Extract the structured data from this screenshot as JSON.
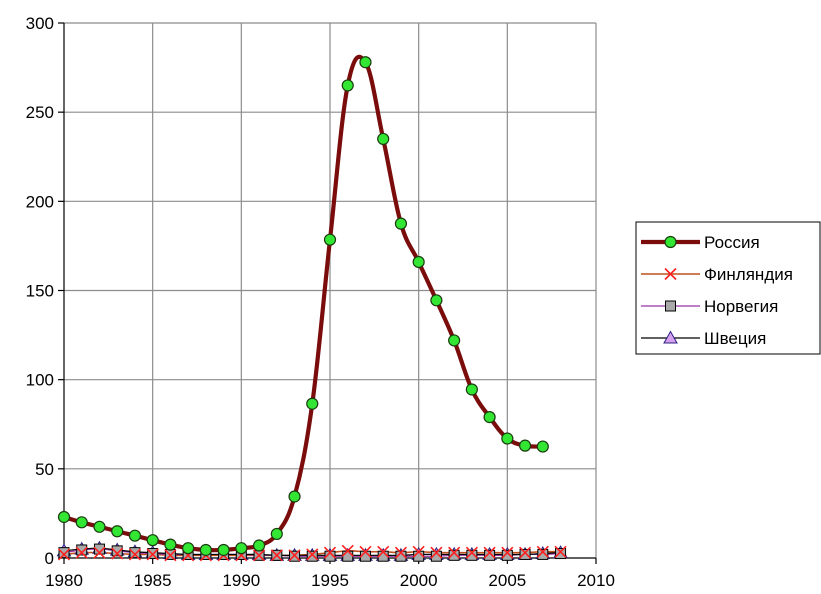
{
  "chart_data": {
    "type": "line",
    "title": "",
    "xlabel": "",
    "ylabel": "",
    "xlim": [
      1980,
      2010
    ],
    "ylim": [
      0,
      300
    ],
    "xticks": [
      1980,
      1985,
      1990,
      1995,
      2000,
      2005,
      2010
    ],
    "yticks": [
      0,
      50,
      100,
      150,
      200,
      250,
      300
    ],
    "grid": true,
    "legend_position": "right",
    "series": [
      {
        "name": "Россия",
        "color": "#7b0c0c",
        "marker": "circle",
        "marker_fill": "#33e633",
        "x": [
          1980,
          1981,
          1982,
          1983,
          1984,
          1985,
          1986,
          1987,
          1988,
          1989,
          1990,
          1991,
          1992,
          1993,
          1994,
          1995,
          1996,
          1997,
          1998,
          1999,
          2000,
          2001,
          2002,
          2003,
          2004,
          2005,
          2006,
          2007
        ],
        "y": [
          23,
          20,
          17.5,
          15,
          12.5,
          10,
          7.5,
          5.5,
          4.5,
          4.5,
          5.5,
          7,
          13.5,
          34.5,
          86.5,
          178.5,
          265,
          278,
          235,
          187.5,
          166,
          144.5,
          122,
          94.5,
          79,
          67,
          63,
          62.5
        ]
      },
      {
        "name": "Финляндия",
        "color": "#c0501f",
        "marker": "x",
        "marker_fill": "#ff2020",
        "x": [
          1980,
          1981,
          1982,
          1983,
          1984,
          1985,
          1986,
          1987,
          1988,
          1989,
          1990,
          1991,
          1992,
          1993,
          1994,
          1995,
          1996,
          1997,
          1998,
          1999,
          2000,
          2001,
          2002,
          2003,
          2004,
          2005,
          2006,
          2007,
          2008
        ],
        "y": [
          2,
          3,
          3,
          2.5,
          2,
          2,
          1.5,
          1.5,
          1.5,
          1.5,
          1.5,
          1.5,
          1.5,
          1.5,
          2,
          3,
          4,
          3.5,
          3.5,
          3,
          3.5,
          3,
          3,
          3,
          3,
          3,
          3,
          3.5,
          3.5
        ]
      },
      {
        "name": "Норвегия",
        "color": "#9932a6",
        "marker": "square",
        "marker_fill": "#aaaaaa",
        "x": [
          1980,
          1981,
          1982,
          1983,
          1984,
          1985,
          1986,
          1987,
          1988,
          1989,
          1990,
          1991,
          1992,
          1993,
          1994,
          1995,
          1996,
          1997,
          1998,
          1999,
          2000,
          2001,
          2002,
          2003,
          2004,
          2005,
          2006,
          2007,
          2008
        ],
        "y": [
          3,
          4.5,
          5,
          4,
          3,
          2.5,
          2,
          2,
          2,
          2,
          2,
          1.5,
          1.5,
          1,
          1,
          1,
          1,
          1,
          1,
          1,
          1,
          1,
          1.5,
          1.5,
          1.5,
          1.5,
          2,
          2,
          2.5
        ]
      },
      {
        "name": "Швеция",
        "color": "#000000",
        "marker": "triangle",
        "marker_fill": "#d6a0ee",
        "x": [
          1980,
          1981,
          1982,
          1983,
          1984,
          1985,
          1986,
          1987,
          1988,
          1989,
          1990,
          1991,
          1992,
          1993,
          1994,
          1995,
          1996,
          1997,
          1998,
          1999,
          2000,
          2001,
          2002,
          2003,
          2004,
          2005,
          2006,
          2007,
          2008
        ],
        "y": [
          4,
          5,
          5.5,
          4.5,
          3.5,
          3,
          2.5,
          2,
          2,
          2,
          2,
          2,
          1.5,
          1.5,
          1.5,
          1.5,
          1.5,
          1.5,
          1.5,
          1.5,
          2,
          2,
          2,
          2,
          2,
          2,
          2,
          2.5,
          3
        ]
      }
    ]
  }
}
